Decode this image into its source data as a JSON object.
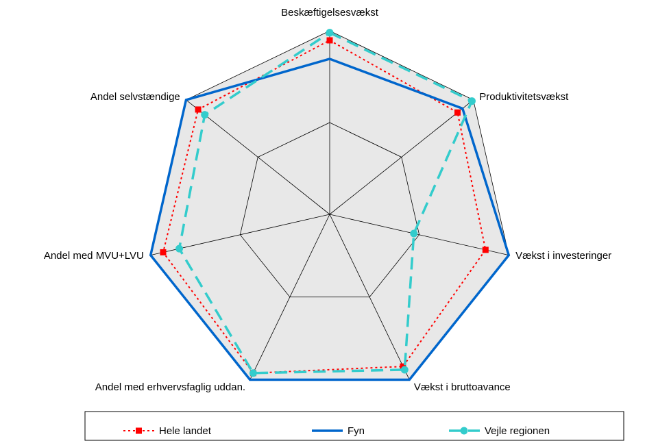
{
  "chart_data": {
    "type": "radar",
    "categories": [
      "Beskæftigelsesvækst",
      "Produktivitetsvækst",
      "Vækst i investeringer",
      "Vækst i bruttoavance",
      "Andel med erhvervsfaglig uddan.",
      "Andel med MVU+LVU",
      "Andel selvstændige"
    ],
    "series": [
      {
        "name": "Hele landet",
        "color": "#ff0000",
        "values": [
          94.8,
          89,
          87,
          92,
          96,
          93,
          91.6
        ]
      },
      {
        "name": "Fyn",
        "color": "#0066cc",
        "values": [
          84.7,
          92.5,
          100,
          100,
          100,
          100,
          100
        ]
      },
      {
        "name": "Vejle regionen",
        "color": "#33cccc",
        "values": [
          99,
          99,
          47,
          94,
          96,
          84,
          87
        ]
      }
    ],
    "ylim": [
      0,
      100
    ],
    "yticks": [
      50,
      100
    ],
    "grid": true
  }
}
